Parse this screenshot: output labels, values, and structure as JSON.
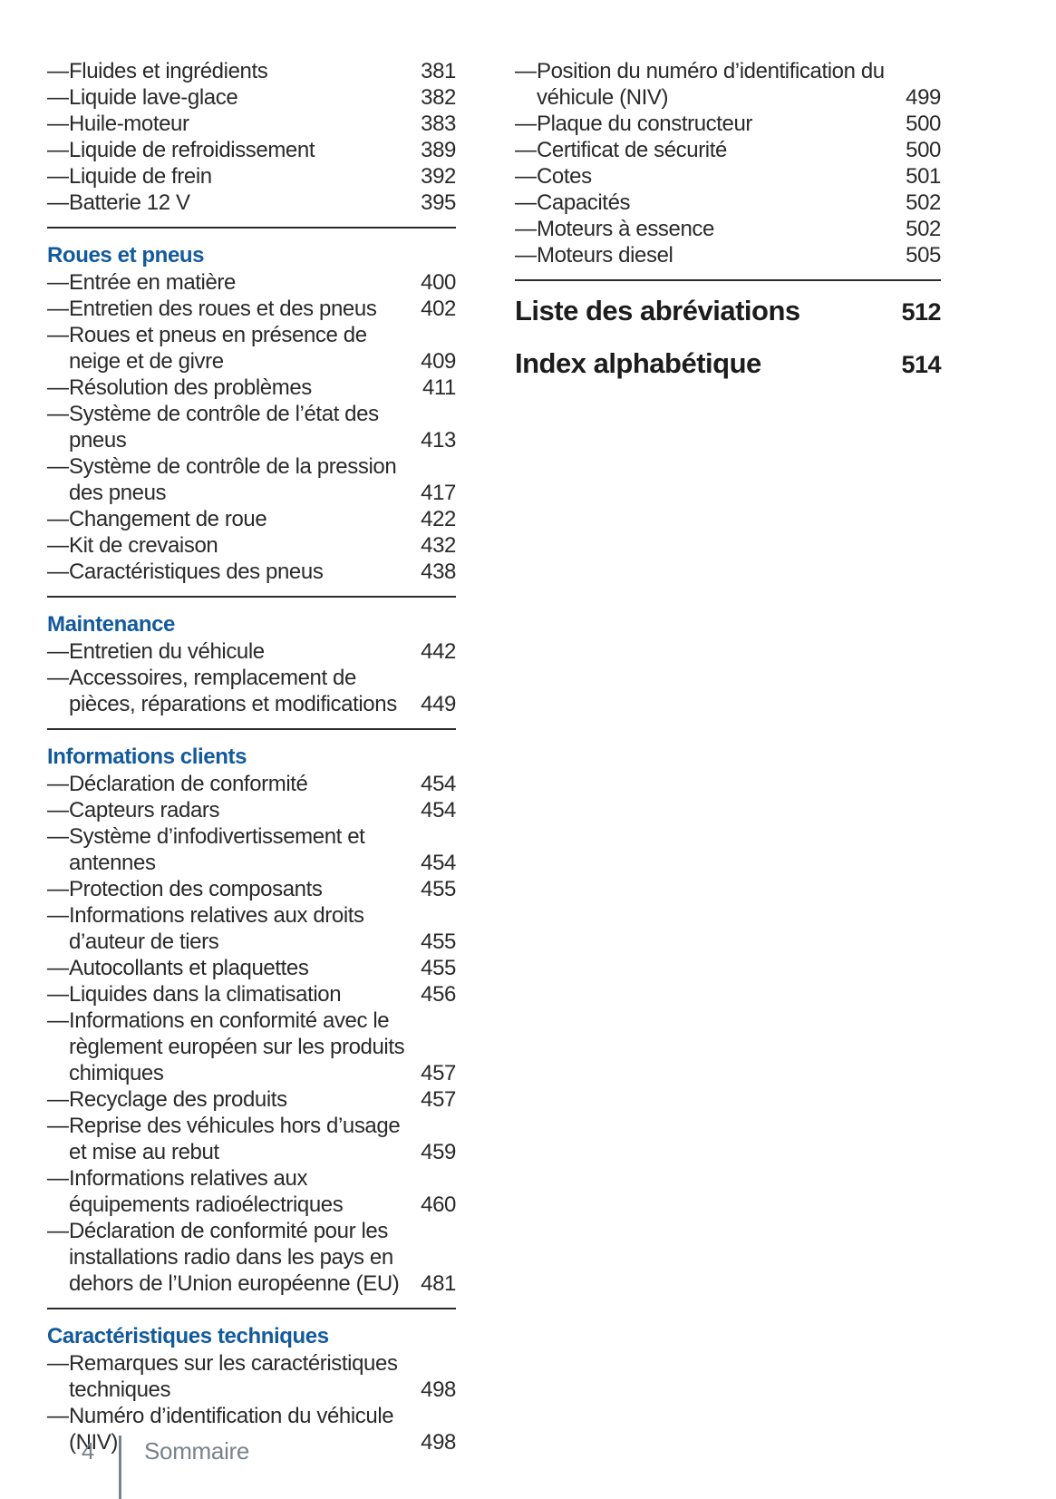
{
  "bullet": "—",
  "colors": {
    "accent": "#125aa0",
    "text": "#2a2a2a",
    "footer_gray": "#78828a",
    "rule": "#2b2b2b"
  },
  "footer": {
    "page_number": "4",
    "title": "Sommaire"
  },
  "columns": {
    "left": {
      "sections": [
        {
          "heading": null,
          "divider": true,
          "items": [
            {
              "label": "Fluides et ingrédients",
              "page": "381"
            },
            {
              "label": "Liquide lave-glace",
              "page": "382"
            },
            {
              "label": "Huile-moteur",
              "page": "383"
            },
            {
              "label": "Liquide de refroidissement",
              "page": "389"
            },
            {
              "label": "Liquide de frein",
              "page": "392"
            },
            {
              "label": "Batterie 12 V",
              "page": "395"
            }
          ]
        },
        {
          "heading": "Roues et pneus",
          "divider": true,
          "items": [
            {
              "label": "Entrée en matière",
              "page": "400"
            },
            {
              "label": "Entretien des roues et des pneus",
              "page": "402"
            },
            {
              "label": "Roues et pneus en présence de neige et de givre",
              "page": "409"
            },
            {
              "label": "Résolution des problèmes",
              "page": "411"
            },
            {
              "label": "Système de contrôle de l’état des pneus",
              "page": "413"
            },
            {
              "label": "Système de contrôle de la pression des pneus",
              "page": "417"
            },
            {
              "label": "Changement de roue",
              "page": "422"
            },
            {
              "label": "Kit de crevaison",
              "page": "432"
            },
            {
              "label": "Caractéristiques des pneus",
              "page": "438"
            }
          ]
        },
        {
          "heading": "Maintenance",
          "divider": true,
          "items": [
            {
              "label": "Entretien du véhicule",
              "page": "442"
            },
            {
              "label": "Accessoires, remplacement de pièces, réparations et modifications",
              "page": "449"
            }
          ]
        },
        {
          "heading": "Informations clients",
          "divider": true,
          "items": [
            {
              "label": "Déclaration de conformité",
              "page": "454"
            },
            {
              "label": "Capteurs radars",
              "page": "454"
            },
            {
              "label": "Système d’infodivertissement et antennes",
              "page": "454"
            },
            {
              "label": "Protection des composants",
              "page": "455"
            },
            {
              "label": "Informations relatives aux droits d’auteur de tiers",
              "page": "455"
            },
            {
              "label": "Autocollants et plaquettes",
              "page": "455"
            },
            {
              "label": "Liquides dans la climatisation",
              "page": "456"
            },
            {
              "label": "Informations en conformité avec le règlement européen sur les produits chimiques",
              "page": "457"
            },
            {
              "label": "Recyclage des produits",
              "page": "457"
            },
            {
              "label": "Reprise des véhicules hors d’usage et mise au rebut",
              "page": "459"
            },
            {
              "label": "Informations relatives aux équipements radioélectriques",
              "page": "460"
            },
            {
              "label": "Déclaration de conformité pour les installations radio dans les pays en dehors de l’Union européenne (EU)",
              "page": "481"
            }
          ]
        },
        {
          "heading": "Caractéristiques techniques",
          "divider": false,
          "items": [
            {
              "label": "Remarques sur les caractéristiques techniques",
              "page": "498"
            },
            {
              "label": "Numéro d’identification du véhicule (NIV)",
              "page": "498"
            }
          ]
        }
      ],
      "major_entries": []
    },
    "right": {
      "sections": [
        {
          "heading": null,
          "divider": true,
          "items": [
            {
              "label": "Position du numéro d’identification du véhicule (NIV)",
              "page": "499"
            },
            {
              "label": "Plaque du constructeur",
              "page": "500"
            },
            {
              "label": "Certificat de sécurité",
              "page": "500"
            },
            {
              "label": "Cotes",
              "page": "501"
            },
            {
              "label": "Capacités",
              "page": "502"
            },
            {
              "label": "Moteurs à essence",
              "page": "502"
            },
            {
              "label": "Moteurs diesel",
              "page": "505"
            }
          ]
        }
      ],
      "major_entries": [
        {
          "label": "Liste des abréviations",
          "page": "512"
        },
        {
          "label": "Index alphabétique",
          "page": "514"
        }
      ]
    }
  }
}
